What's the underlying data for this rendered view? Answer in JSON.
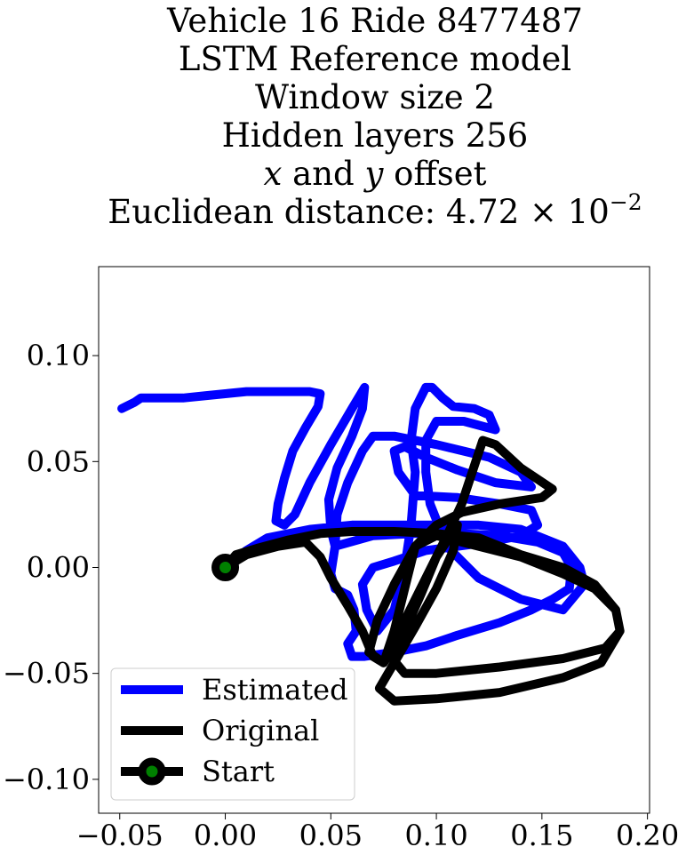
{
  "title": {
    "line1": "Vehicle 16 Ride 8477487",
    "line2": "LSTM Reference model",
    "line3": "Window size 2",
    "line4": "Hidden layers 256",
    "line5_x": "x",
    "line5_and": " and ",
    "line5_y": "y",
    "line5_rest": " offset",
    "line6_prefix": "Euclidean distance: 4.72 × 10",
    "line6_exp": "−2"
  },
  "chart_data": {
    "type": "line",
    "xlim": [
      -0.06,
      0.201
    ],
    "ylim": [
      -0.116,
      0.142
    ],
    "xticks": [
      -0.05,
      0.0,
      0.05,
      0.1,
      0.15,
      0.2
    ],
    "xtick_labels": [
      "−0.05",
      "0.00",
      "0.05",
      "0.10",
      "0.15",
      "0.20"
    ],
    "yticks": [
      -0.1,
      -0.05,
      0.0,
      0.05,
      0.1
    ],
    "ytick_labels": [
      "−0.10",
      "−0.05",
      "0.00",
      "0.05",
      "0.10"
    ],
    "grid": false,
    "legend_position": "lower-left",
    "series": [
      {
        "name": "Estimated",
        "color": "#0000ff",
        "points": [
          [
            -0.049,
            0.075
          ],
          [
            -0.043,
            0.078
          ],
          [
            -0.04,
            0.08
          ],
          [
            -0.03,
            0.08
          ],
          [
            -0.02,
            0.08
          ],
          [
            -0.01,
            0.081
          ],
          [
            0.0,
            0.082
          ],
          [
            0.01,
            0.083
          ],
          [
            0.025,
            0.083
          ],
          [
            0.04,
            0.083
          ],
          [
            0.045,
            0.082
          ],
          [
            0.044,
            0.076
          ],
          [
            0.038,
            0.066
          ],
          [
            0.032,
            0.055
          ],
          [
            0.028,
            0.042
          ],
          [
            0.025,
            0.03
          ],
          [
            0.024,
            0.022
          ],
          [
            0.028,
            0.02
          ],
          [
            0.033,
            0.025
          ],
          [
            0.04,
            0.04
          ],
          [
            0.05,
            0.058
          ],
          [
            0.06,
            0.075
          ],
          [
            0.066,
            0.085
          ],
          [
            0.065,
            0.075
          ],
          [
            0.06,
            0.062
          ],
          [
            0.053,
            0.047
          ],
          [
            0.049,
            0.032
          ],
          [
            0.05,
            0.018
          ],
          [
            0.052,
            0.01
          ],
          [
            0.05,
            -0.003
          ],
          [
            0.052,
            -0.01
          ],
          [
            0.058,
            -0.013
          ],
          [
            0.061,
            -0.02
          ],
          [
            0.062,
            -0.03
          ],
          [
            0.058,
            -0.036
          ],
          [
            0.06,
            -0.042
          ],
          [
            0.066,
            -0.042
          ],
          [
            0.08,
            -0.04
          ],
          [
            0.095,
            -0.037
          ],
          [
            0.11,
            -0.032
          ],
          [
            0.13,
            -0.026
          ],
          [
            0.145,
            -0.02
          ],
          [
            0.155,
            -0.015
          ],
          [
            0.163,
            -0.01
          ],
          [
            0.164,
            0.0
          ],
          [
            0.16,
            0.007
          ],
          [
            0.148,
            0.012
          ],
          [
            0.13,
            0.015
          ],
          [
            0.11,
            0.016
          ],
          [
            0.09,
            0.016
          ],
          [
            0.07,
            0.015
          ],
          [
            0.052,
            0.01
          ],
          [
            0.053,
            0.025
          ],
          [
            0.058,
            0.04
          ],
          [
            0.065,
            0.055
          ],
          [
            0.07,
            0.062
          ],
          [
            0.08,
            0.062
          ],
          [
            0.1,
            0.058
          ],
          [
            0.125,
            0.052
          ],
          [
            0.14,
            0.045
          ],
          [
            0.145,
            0.038
          ],
          [
            0.128,
            0.04
          ],
          [
            0.11,
            0.046
          ],
          [
            0.095,
            0.052
          ],
          [
            0.085,
            0.057
          ],
          [
            0.08,
            0.055
          ],
          [
            0.082,
            0.045
          ],
          [
            0.09,
            0.034
          ],
          [
            0.11,
            0.033
          ],
          [
            0.13,
            0.03
          ],
          [
            0.145,
            0.027
          ],
          [
            0.148,
            0.02
          ],
          [
            0.14,
            0.015
          ],
          [
            0.125,
            0.012
          ],
          [
            0.11,
            0.01
          ],
          [
            0.095,
            0.008
          ],
          [
            0.08,
            0.003
          ],
          [
            0.07,
            0.0
          ],
          [
            0.065,
            -0.008
          ],
          [
            0.067,
            -0.02
          ],
          [
            0.072,
            -0.03
          ],
          [
            0.08,
            -0.02
          ],
          [
            0.085,
            0.0
          ],
          [
            0.088,
            0.02
          ],
          [
            0.09,
            0.045
          ],
          [
            0.088,
            0.06
          ],
          [
            0.09,
            0.075
          ],
          [
            0.095,
            0.085
          ],
          [
            0.098,
            0.085
          ],
          [
            0.103,
            0.08
          ],
          [
            0.108,
            0.076
          ],
          [
            0.118,
            0.075
          ],
          [
            0.125,
            0.072
          ],
          [
            0.128,
            0.065
          ],
          [
            0.113,
            0.069
          ],
          [
            0.1,
            0.069
          ],
          [
            0.095,
            0.06
          ],
          [
            0.095,
            0.045
          ],
          [
            0.097,
            0.03
          ],
          [
            0.105,
            0.01
          ],
          [
            0.12,
            -0.005
          ],
          [
            0.14,
            -0.015
          ],
          [
            0.16,
            -0.02
          ],
          [
            0.17,
            -0.008
          ],
          [
            0.168,
            0.0
          ],
          [
            0.16,
            0.01
          ],
          [
            0.14,
            0.018
          ],
          [
            0.12,
            0.02
          ],
          [
            0.1,
            0.02
          ],
          [
            0.08,
            0.02
          ],
          [
            0.06,
            0.02
          ],
          [
            0.04,
            0.018
          ],
          [
            0.02,
            0.014
          ],
          [
            0.01,
            0.008
          ],
          [
            0.002,
            0.002
          ],
          [
            0.0,
            0.0
          ]
        ]
      },
      {
        "name": "Original",
        "color": "#000000",
        "points": [
          [
            0.0,
            0.0
          ],
          [
            0.005,
            0.006
          ],
          [
            0.015,
            0.009
          ],
          [
            0.03,
            0.013
          ],
          [
            0.045,
            0.016
          ],
          [
            0.06,
            0.017
          ],
          [
            0.08,
            0.017
          ],
          [
            0.1,
            0.016
          ],
          [
            0.12,
            0.014
          ],
          [
            0.14,
            0.006
          ],
          [
            0.16,
            0.0
          ],
          [
            0.175,
            -0.008
          ],
          [
            0.185,
            -0.02
          ],
          [
            0.187,
            -0.03
          ],
          [
            0.18,
            -0.038
          ],
          [
            0.16,
            -0.043
          ],
          [
            0.13,
            -0.047
          ],
          [
            0.1,
            -0.05
          ],
          [
            0.085,
            -0.05
          ],
          [
            0.08,
            -0.044
          ],
          [
            0.085,
            -0.025
          ],
          [
            0.095,
            -0.005
          ],
          [
            0.105,
            0.015
          ],
          [
            0.112,
            0.03
          ],
          [
            0.118,
            0.048
          ],
          [
            0.122,
            0.06
          ],
          [
            0.128,
            0.058
          ],
          [
            0.14,
            0.047
          ],
          [
            0.155,
            0.037
          ],
          [
            0.15,
            0.033
          ],
          [
            0.13,
            0.03
          ],
          [
            0.112,
            0.026
          ],
          [
            0.1,
            0.02
          ],
          [
            0.09,
            0.01
          ],
          [
            0.08,
            -0.008
          ],
          [
            0.072,
            -0.025
          ],
          [
            0.068,
            -0.04
          ],
          [
            0.075,
            -0.045
          ],
          [
            0.085,
            -0.03
          ],
          [
            0.093,
            -0.012
          ],
          [
            0.1,
            0.005
          ],
          [
            0.11,
            0.02
          ],
          [
            0.108,
            0.008
          ],
          [
            0.1,
            -0.01
          ],
          [
            0.09,
            -0.028
          ],
          [
            0.08,
            -0.045
          ],
          [
            0.073,
            -0.057
          ],
          [
            0.08,
            -0.063
          ],
          [
            0.1,
            -0.062
          ],
          [
            0.13,
            -0.059
          ],
          [
            0.16,
            -0.052
          ],
          [
            0.178,
            -0.045
          ],
          [
            0.187,
            -0.03
          ],
          [
            0.185,
            -0.02
          ],
          [
            0.175,
            -0.01
          ],
          [
            0.16,
            -0.003
          ],
          [
            0.14,
            0.005
          ],
          [
            0.12,
            0.01
          ],
          [
            0.1,
            0.015
          ],
          [
            0.09,
            0.01
          ],
          [
            0.085,
            -0.01
          ],
          [
            0.08,
            -0.03
          ],
          [
            0.075,
            -0.045
          ],
          [
            0.07,
            -0.042
          ],
          [
            0.065,
            -0.03
          ],
          [
            0.058,
            -0.018
          ],
          [
            0.05,
            -0.005
          ],
          [
            0.045,
            0.005
          ],
          [
            0.038,
            0.012
          ],
          [
            0.025,
            0.01
          ],
          [
            0.01,
            0.006
          ],
          [
            0.0,
            0.0
          ]
        ]
      }
    ],
    "start": {
      "name": "Start",
      "x": 0.0,
      "y": 0.0,
      "marker_fill": "#008000",
      "marker_edge": "#000000"
    }
  }
}
